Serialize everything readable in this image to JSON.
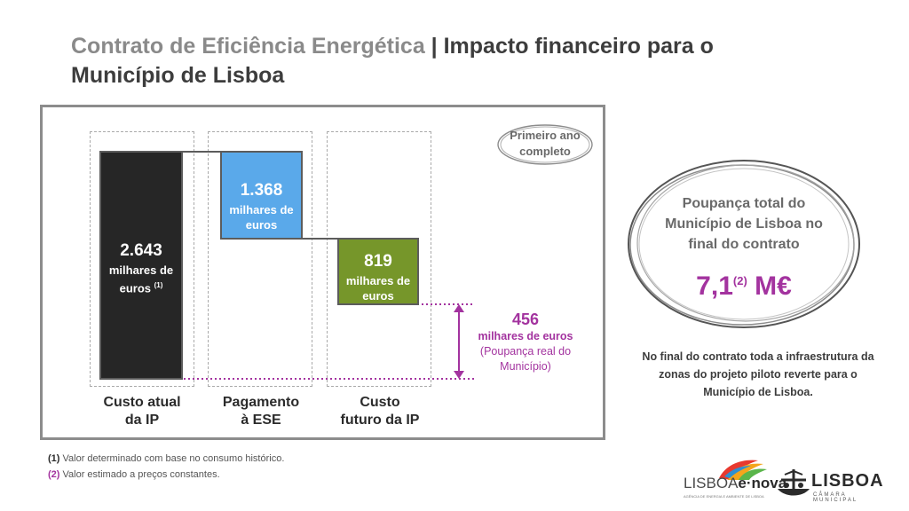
{
  "title": {
    "part1": "Contrato de Eficiência Energética",
    "part2": "| Impacto financeiro para o Município de Lisboa"
  },
  "tag": {
    "line1": "Primeiro ano",
    "line2": "completo"
  },
  "bars": [
    {
      "value": "2.643",
      "unit": "milhares de euros",
      "note": "(1)",
      "category_line1": "Custo atual",
      "category_line2": "da IP"
    },
    {
      "value": "1.368",
      "unit": "milhares de euros",
      "category_line1": "Pagamento",
      "category_line2": "à ESE"
    },
    {
      "value": "819",
      "unit": "milhares de euros",
      "category_line1": "Custo",
      "category_line2": "futuro da IP"
    }
  ],
  "savings": {
    "value": "456",
    "unit": "milhares de euros",
    "desc": "(Poupança real do Município)"
  },
  "total_savings": {
    "text": "Poupança total do Município de Lisboa no final do contrato",
    "value_main": "7,1",
    "value_note": "(2)",
    "value_unit": "M€"
  },
  "side_note": "No final do contrato toda a infraestrutura da zonas do projeto piloto reverte para o Município de Lisboa.",
  "footnotes": [
    {
      "mark": "(1)",
      "text": "Valor determinado com base no consumo histórico."
    },
    {
      "mark": "(2)",
      "text": "Valor estimado a preços constantes."
    }
  ],
  "logos": {
    "enova_text1": "LISBOA",
    "enova_text2": "e·nova",
    "enova_sub": "AGÊNCIA DE ENERGIA E AMBIENTE DE LISBOA",
    "cml_text": "LISBOA",
    "cml_sub": "CÂMARA MUNICIPAL"
  },
  "colors": {
    "bar1": "#262626",
    "bar2": "#5aa9ea",
    "bar3": "#76962a",
    "accent": "#a3339f"
  }
}
